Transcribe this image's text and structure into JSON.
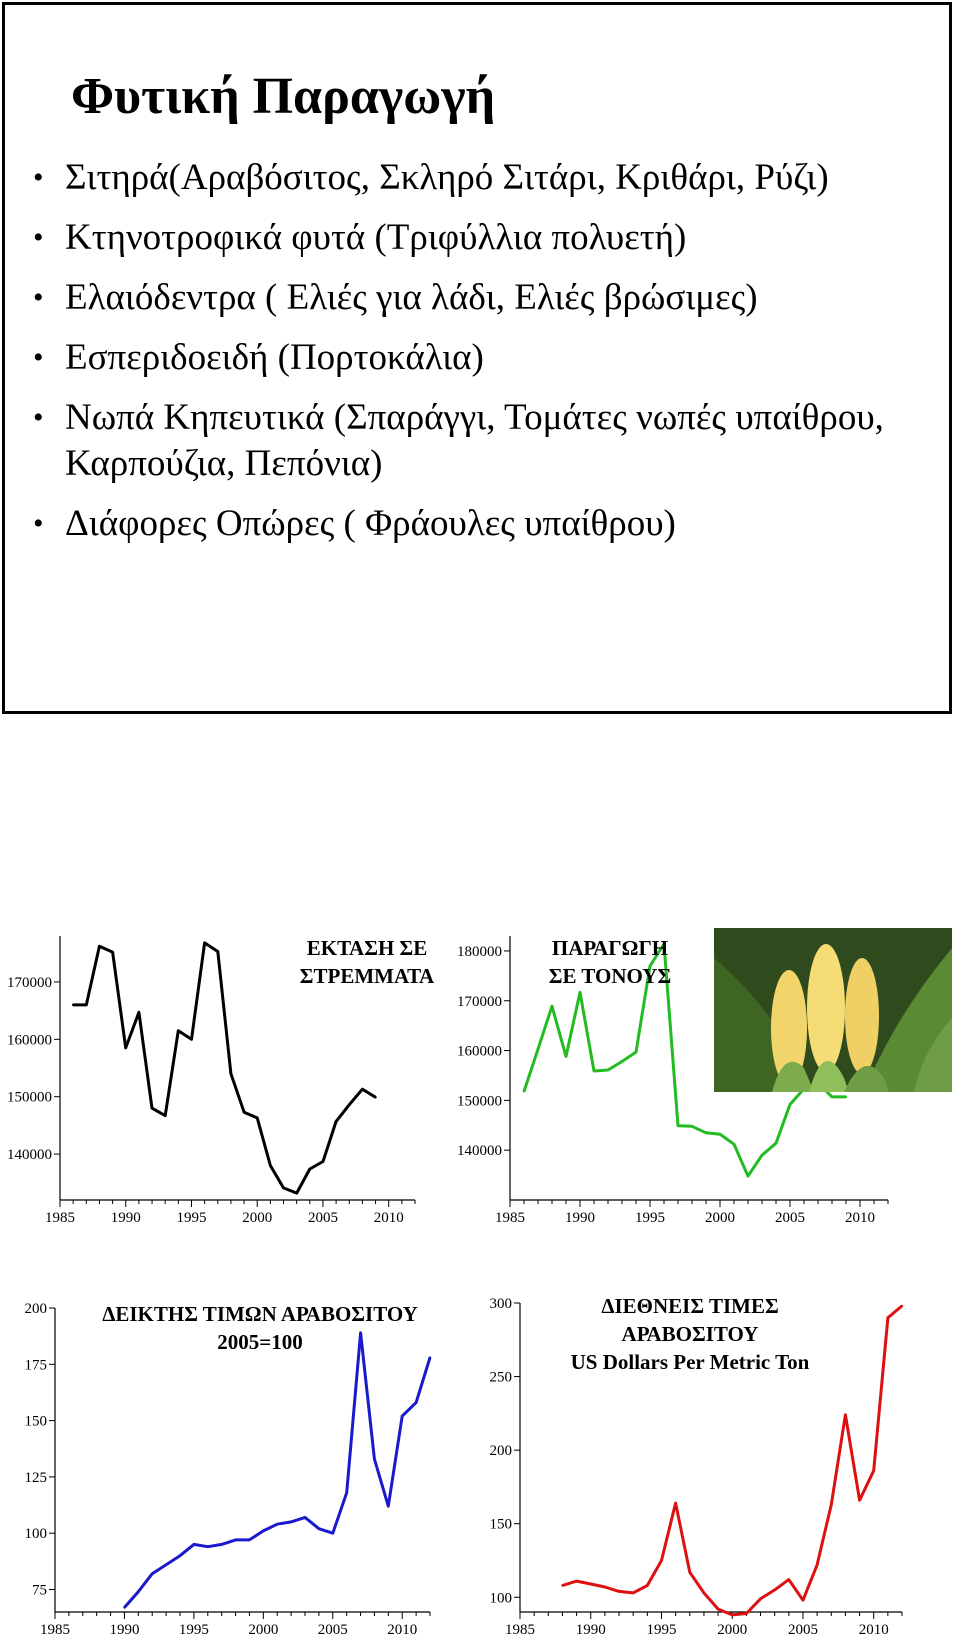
{
  "slide": {
    "title": "Φυτική Παραγωγή",
    "bullet_glyph": "•",
    "bullets": [
      "Σιτηρά(Αραβόσιτος, Σκληρό Σιτάρι, Κριθάρι, Ρύζι)",
      "Κτηνοτροφικά φυτά (Τριφύλλια πολυετή)",
      "Ελαιόδεντρα ( Ελιές για λάδι, Ελιές βρώσιμες)",
      "Εσπεριδοειδή (Πορτοκάλια)",
      "Νωπά Κηπευτικά (Σπαράγγι, Τομάτες νωπές υπαίθρου, Καρπούζια, Πεπόνια)",
      "Διάφορες Οπώρες ( Φράουλες υπαίθρου)"
    ]
  },
  "photo": {
    "icon": "corn-photo"
  },
  "chart_data": [
    {
      "type": "line",
      "title_lines": [
        "ΕΚΤΑΣΗ ΣΕ",
        "ΣΤΡΕΜΜΑΤΑ"
      ],
      "color": "#000000",
      "xlim": [
        1985,
        2012
      ],
      "ylim": [
        132000,
        178000
      ],
      "xticks": [
        1985,
        1990,
        1995,
        2000,
        2005,
        2010
      ],
      "yticks": [
        140000,
        150000,
        160000,
        170000
      ],
      "grid": false,
      "x": [
        1986,
        1987,
        1988,
        1989,
        1990,
        1991,
        1992,
        1993,
        1994,
        1995,
        1996,
        1997,
        1998,
        1999,
        2000,
        2001,
        2002,
        2003,
        2004,
        2005,
        2006,
        2007,
        2008,
        2009
      ],
      "y": [
        166000,
        166000,
        176200,
        175200,
        158500,
        164700,
        148000,
        146700,
        161500,
        160000,
        176800,
        175300,
        154000,
        147300,
        146300,
        138000,
        134100,
        133200,
        137400,
        138700,
        145700,
        148600,
        151300,
        149900
      ]
    },
    {
      "type": "line",
      "title_lines": [
        "ΠΑΡΑΓΩΓΗ",
        "ΣΕ ΤΟΝΟΥΣ"
      ],
      "color": "#22bb22",
      "xlim": [
        1985,
        2012
      ],
      "ylim": [
        130000,
        183000
      ],
      "xticks": [
        1985,
        1990,
        1995,
        2000,
        2005,
        2010
      ],
      "yticks": [
        140000,
        150000,
        160000,
        170000,
        180000
      ],
      "grid": false,
      "x": [
        1986,
        1987,
        1988,
        1989,
        1990,
        1991,
        1992,
        1993,
        1994,
        1995,
        1996,
        1997,
        1998,
        1999,
        2000,
        2001,
        2002,
        2003,
        2004,
        2005,
        2006,
        2007,
        2008,
        2009
      ],
      "y": [
        151800,
        160300,
        168900,
        158800,
        171700,
        155900,
        156100,
        157800,
        159700,
        177000,
        181400,
        144900,
        144800,
        143500,
        143200,
        141200,
        134800,
        139000,
        141400,
        149200,
        152300,
        153500,
        150700,
        150700
      ]
    },
    {
      "type": "line",
      "title_lines": [
        "ΔΕΙΚΤΗΣ  ΤΙΜΩΝ ΑΡΑΒΟΣΙΤΟΥ",
        "2005=100"
      ],
      "color": "#1a1acc",
      "xlim": [
        1985,
        2012
      ],
      "ylim": [
        65,
        200
      ],
      "xticks": [
        1985,
        1990,
        1995,
        2000,
        2005,
        2010
      ],
      "yticks": [
        75,
        100,
        125,
        150,
        175,
        200
      ],
      "grid": false,
      "x": [
        1990,
        1991,
        1992,
        1993,
        1994,
        1995,
        1996,
        1997,
        1998,
        1999,
        2000,
        2001,
        2002,
        2003,
        2004,
        2005,
        2006,
        2007,
        2008,
        2009,
        2010,
        2011,
        2012
      ],
      "y": [
        67,
        74,
        82,
        86,
        90,
        95,
        94,
        95,
        97,
        97,
        101,
        104,
        105,
        107,
        102,
        100,
        118,
        189,
        133,
        112,
        152,
        158,
        178
      ]
    },
    {
      "type": "line",
      "title_lines": [
        "ΔΙΕΘΝΕΙΣ  ΤΙΜΕΣ",
        "ΑΡΑΒΟΣΙΤΟΥ",
        "US Dollars Per Metric Ton"
      ],
      "color": "#dd1111",
      "xlim": [
        1985,
        2012
      ],
      "ylim": [
        90,
        300
      ],
      "xticks": [
        1985,
        1990,
        1995,
        2000,
        2005,
        2010
      ],
      "yticks": [
        100,
        150,
        200,
        250,
        300
      ],
      "grid": false,
      "x": [
        1988,
        1989,
        1990,
        1991,
        1992,
        1993,
        1994,
        1995,
        1996,
        1997,
        1998,
        1999,
        2000,
        2001,
        2002,
        2003,
        2004,
        2005,
        2006,
        2007,
        2008,
        2009,
        2010,
        2011,
        2012
      ],
      "y": [
        108,
        111,
        109,
        107,
        104,
        103,
        108,
        125,
        164,
        117,
        103,
        92,
        88,
        89,
        99,
        105,
        112,
        98,
        122,
        163,
        224,
        166,
        186,
        290,
        298
      ]
    }
  ]
}
